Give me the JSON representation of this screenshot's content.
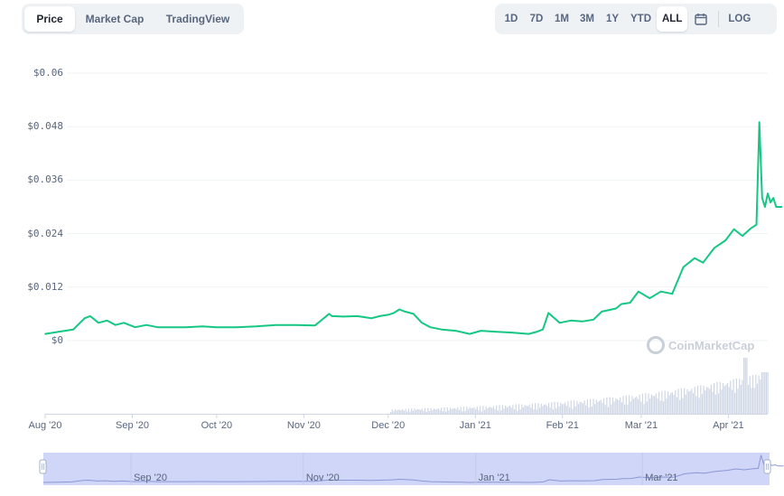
{
  "tabs": {
    "price": "Price",
    "market_cap": "Market Cap",
    "trading_view": "TradingView"
  },
  "ranges": {
    "d1": "1D",
    "d7": "7D",
    "m1": "1M",
    "m3": "3M",
    "y1": "1Y",
    "ytd": "YTD",
    "all": "ALL",
    "log": "LOG"
  },
  "watermark": "CoinMarketCap",
  "colors": {
    "line": "#16c784",
    "volume": "#cfd6e4",
    "navigator": "#a8b4f0"
  },
  "navigator_labels": [
    "Sep '20",
    "Nov '20",
    "Jan '21",
    "Mar '21"
  ],
  "chart_data": {
    "type": "line",
    "y_ticks": [
      "$0.06",
      "$0.048",
      "$0.036",
      "$0.024",
      "$0.012",
      "$0"
    ],
    "x_ticks": [
      "Aug '20",
      "Sep '20",
      "Oct '20",
      "Nov '20",
      "Dec '20",
      "Jan '21",
      "Feb '21",
      "Mar '21",
      "Apr '21"
    ],
    "ylim": [
      0,
      0.06
    ],
    "x_range": [
      "2020-08-01",
      "2021-04-15"
    ],
    "series": [
      {
        "x": [
          "2020-08-01",
          "2020-08-06",
          "2020-08-11",
          "2020-08-15",
          "2020-08-17",
          "2020-08-20",
          "2020-08-23",
          "2020-08-26",
          "2020-08-29",
          "2020-09-02",
          "2020-09-06",
          "2020-09-10",
          "2020-09-15",
          "2020-09-20",
          "2020-09-26",
          "2020-10-01",
          "2020-10-08",
          "2020-10-15",
          "2020-10-22",
          "2020-10-29",
          "2020-11-05",
          "2020-11-10",
          "2020-11-11",
          "2020-11-15",
          "2020-11-20",
          "2020-11-25",
          "2020-11-28",
          "2020-12-01",
          "2020-12-03",
          "2020-12-05",
          "2020-12-07",
          "2020-12-10",
          "2020-12-13",
          "2020-12-16",
          "2020-12-20",
          "2020-12-25",
          "2020-12-30",
          "2021-01-03",
          "2021-01-08",
          "2021-01-14",
          "2021-01-20",
          "2021-01-23",
          "2021-01-25",
          "2021-01-27",
          "2021-01-31",
          "2021-02-04",
          "2021-02-08",
          "2021-02-12",
          "2021-02-15",
          "2021-02-20",
          "2021-02-22",
          "2021-02-25",
          "2021-02-28",
          "2021-03-04",
          "2021-03-08",
          "2021-03-12",
          "2021-03-16",
          "2021-03-20",
          "2021-03-23",
          "2021-03-27",
          "2021-03-31",
          "2021-04-03",
          "2021-04-06",
          "2021-04-09",
          "2021-04-11",
          "2021-04-12",
          "2021-04-13",
          "2021-04-14",
          "2021-04-15",
          "2021-04-16",
          "2021-04-17",
          "2021-04-18",
          "2021-04-20"
        ],
        "y": [
          0.0015,
          0.002,
          0.0025,
          0.005,
          0.0055,
          0.004,
          0.0045,
          0.0035,
          0.004,
          0.003,
          0.0035,
          0.003,
          0.003,
          0.003,
          0.0032,
          0.003,
          0.003,
          0.0032,
          0.0035,
          0.0035,
          0.0034,
          0.006,
          0.0055,
          0.0054,
          0.0055,
          0.005,
          0.0055,
          0.0058,
          0.0062,
          0.007,
          0.0065,
          0.006,
          0.004,
          0.003,
          0.0025,
          0.0022,
          0.0015,
          0.0022,
          0.002,
          0.0018,
          0.0015,
          0.002,
          0.0025,
          0.0062,
          0.004,
          0.0045,
          0.0043,
          0.0047,
          0.0065,
          0.0072,
          0.0082,
          0.0085,
          0.011,
          0.0095,
          0.011,
          0.0105,
          0.0165,
          0.0185,
          0.0175,
          0.0208,
          0.0225,
          0.025,
          0.0235,
          0.0252,
          0.026,
          0.049,
          0.032,
          0.03,
          0.033,
          0.031,
          0.032,
          0.03,
          0.03
        ]
      }
    ]
  }
}
